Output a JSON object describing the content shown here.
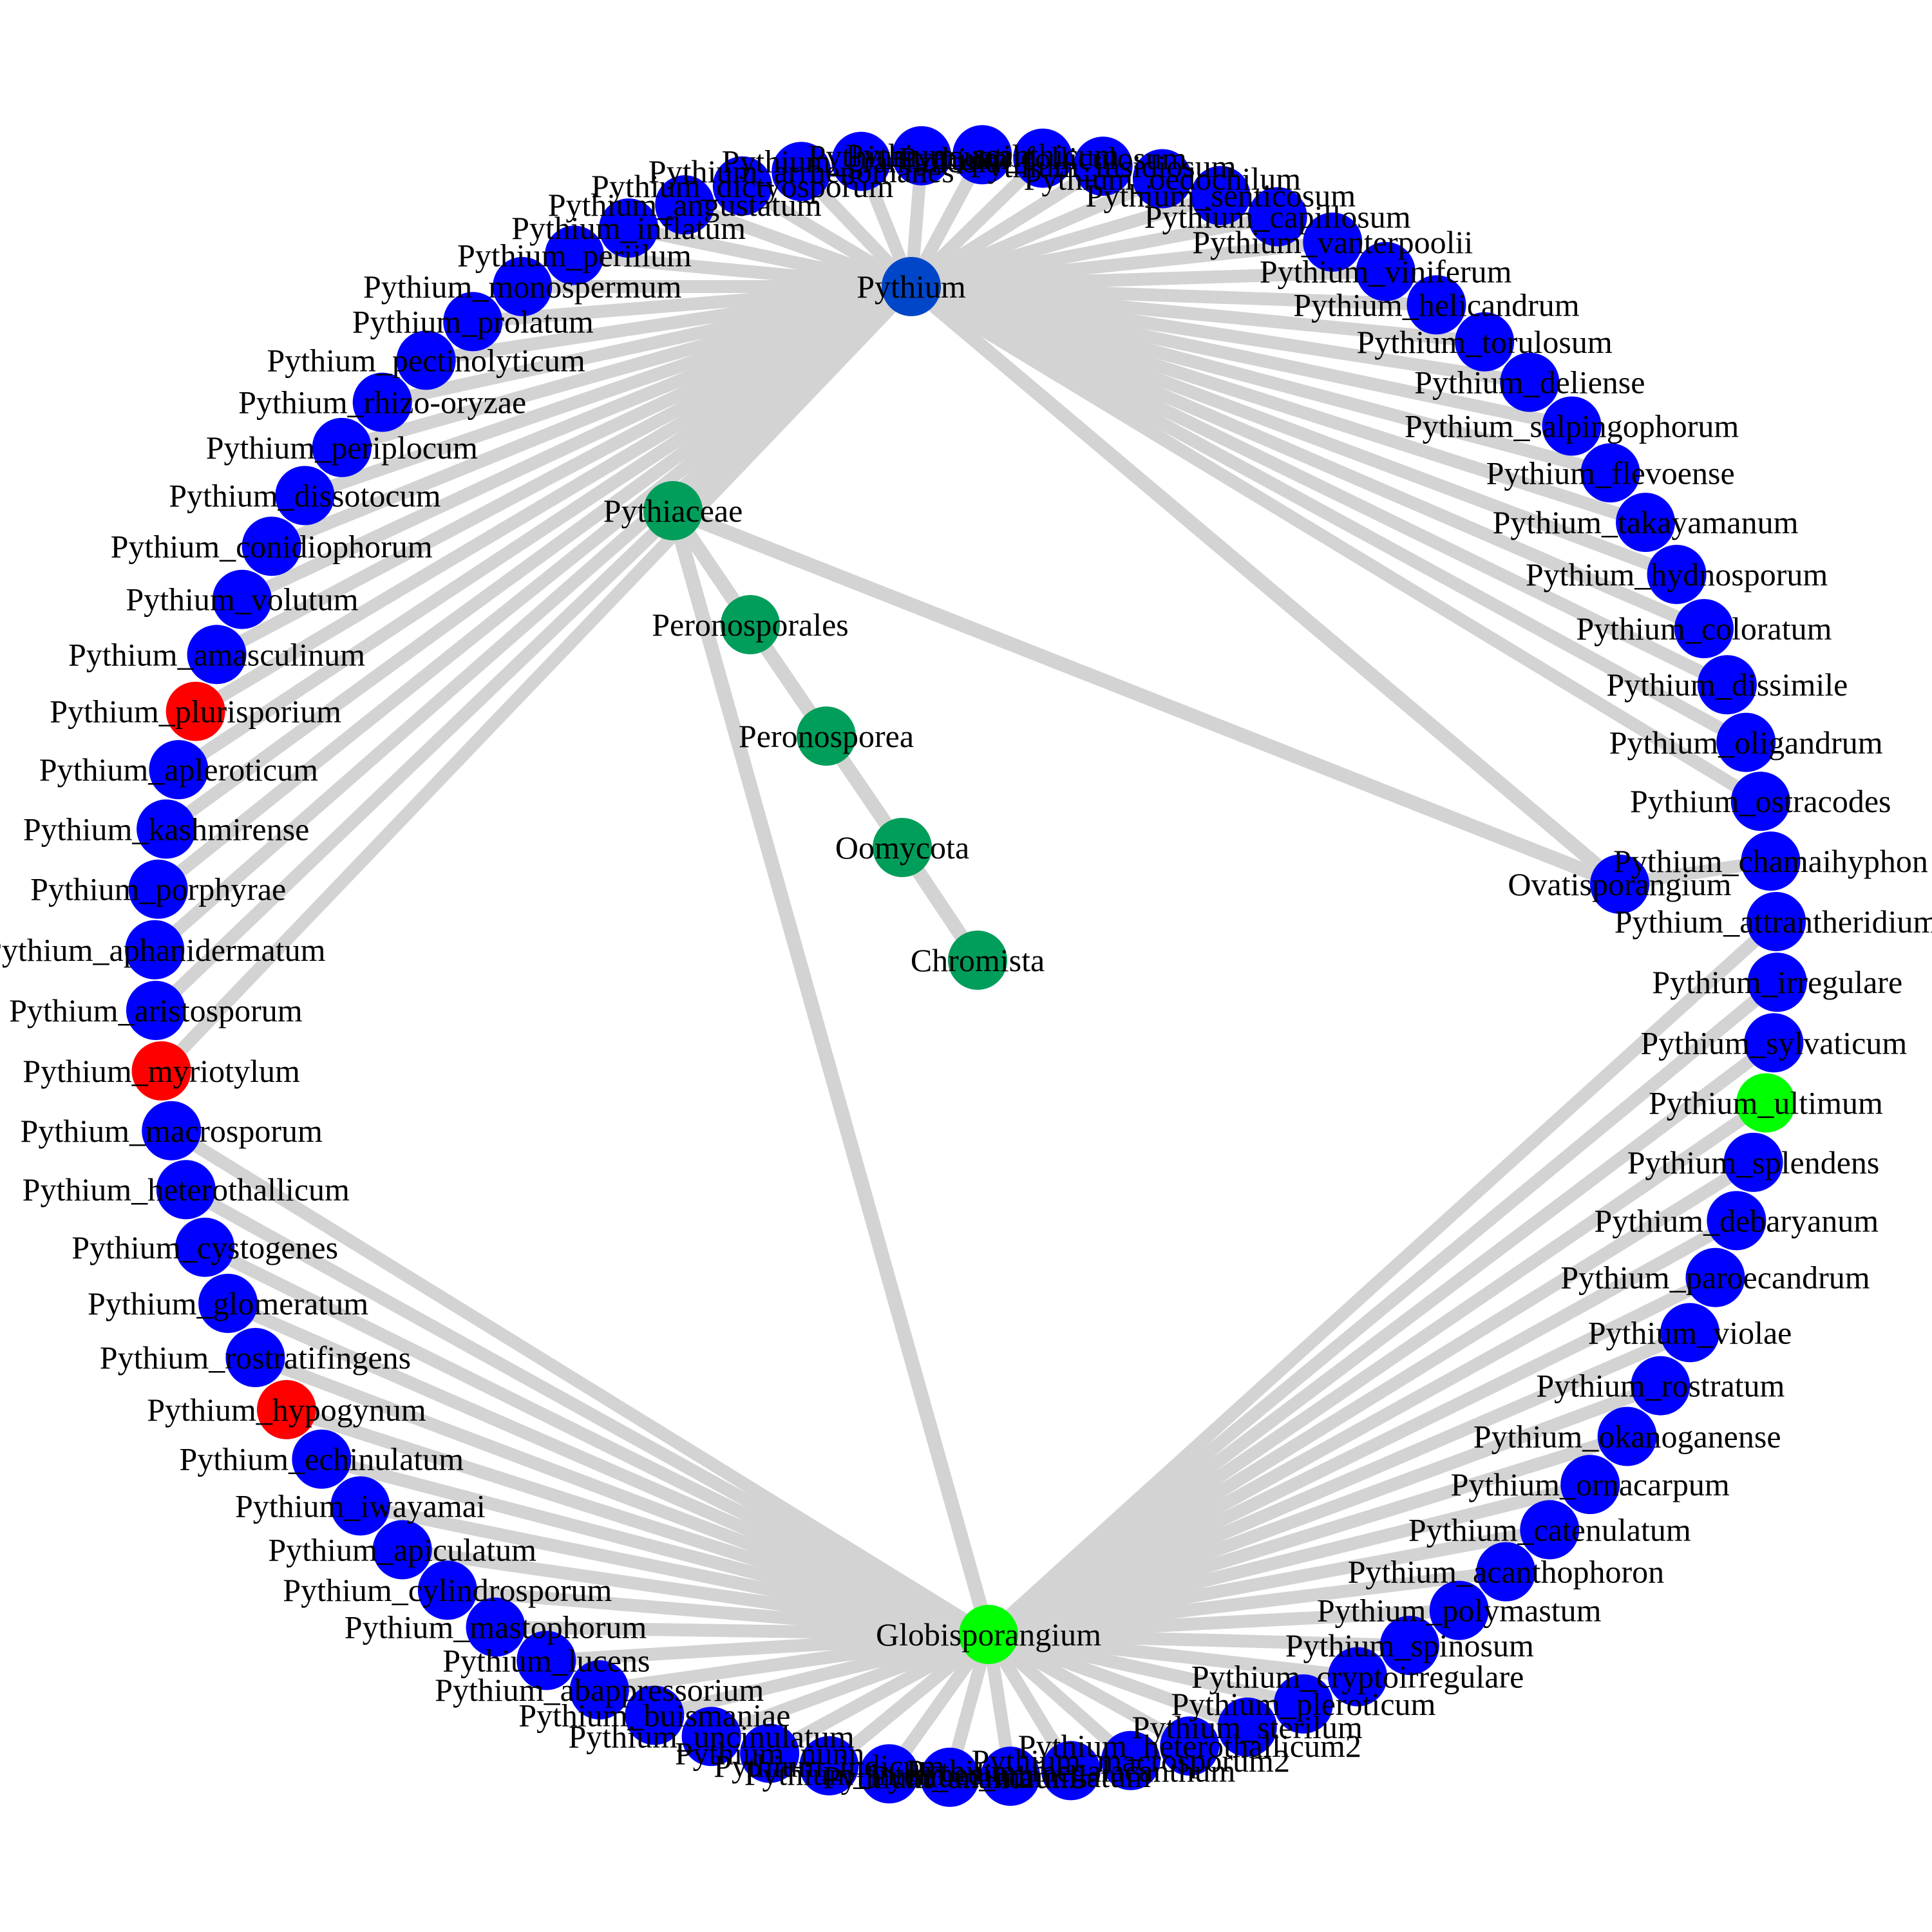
{
  "colors": {
    "edge": "#d3d3d3",
    "species": "#0000ff",
    "highlight_red": "#ff0000",
    "highlight_green": "#00ff00",
    "taxon": "#009e5a",
    "genus": "#0046c8"
  },
  "taxa": [
    {
      "id": "pythium",
      "label": "Pythium",
      "color": "#0046c8"
    },
    {
      "id": "pythiaceae",
      "label": "Pythiaceae",
      "color": "#009e5a"
    },
    {
      "id": "peronosporales",
      "label": "Peronosporales",
      "color": "#009e5a"
    },
    {
      "id": "peronosporea",
      "label": "Peronosporea",
      "color": "#009e5a"
    },
    {
      "id": "oomycota",
      "label": "Oomycota",
      "color": "#009e5a"
    },
    {
      "id": "chromista",
      "label": "Chromista",
      "color": "#009e5a"
    },
    {
      "id": "globisporangium",
      "label": "Globisporangium",
      "color": "#00ff00"
    },
    {
      "id": "ovatisporangium",
      "label": "Ovatisporangium",
      "color": "#0000ff"
    }
  ],
  "taxon_edges": [
    [
      "pythium",
      "pythiaceae"
    ],
    [
      "pythium",
      "ovatisporangium"
    ],
    [
      "pythiaceae",
      "ovatisporangium"
    ],
    [
      "pythiaceae",
      "peronosporales"
    ],
    [
      "pythiaceae",
      "globisporangium"
    ],
    [
      "peronosporales",
      "peronosporea"
    ],
    [
      "peronosporea",
      "oomycota"
    ],
    [
      "oomycota",
      "chromista"
    ]
  ],
  "species": [
    {
      "label": "Pythium_acanthicum",
      "color": "#0000ff",
      "parent": "pythium"
    },
    {
      "label": "Pythium_aquatile",
      "color": "#0000ff",
      "parent": "pythium"
    },
    {
      "label": "Pythium_graminicola",
      "color": "#0000ff",
      "parent": "pythium"
    },
    {
      "label": "Pythium_arrhenomanes",
      "color": "#0000ff",
      "parent": "pythium"
    },
    {
      "label": "Pythium_dictyosporum",
      "color": "#0000ff",
      "parent": "pythium"
    },
    {
      "label": "Pythium_angustatum",
      "color": "#0000ff",
      "parent": "pythium"
    },
    {
      "label": "Pythium_inflatum",
      "color": "#0000ff",
      "parent": "pythium"
    },
    {
      "label": "Pythium_periilum",
      "color": "#0000ff",
      "parent": "pythium"
    },
    {
      "label": "Pythium_monospermum",
      "color": "#0000ff",
      "parent": "pythium"
    },
    {
      "label": "Pythium_prolatum",
      "color": "#0000ff",
      "parent": "pythium"
    },
    {
      "label": "Pythium_pectinolyticum",
      "color": "#0000ff",
      "parent": "pythium"
    },
    {
      "label": "Pythium_rhizo-oryzae",
      "color": "#0000ff",
      "parent": "pythium"
    },
    {
      "label": "Pythium_periplocum",
      "color": "#0000ff",
      "parent": "pythium"
    },
    {
      "label": "Pythium_dissotocum",
      "color": "#0000ff",
      "parent": "pythium"
    },
    {
      "label": "Pythium_conidiophorum",
      "color": "#0000ff",
      "parent": "pythium"
    },
    {
      "label": "Pythium_volutum",
      "color": "#0000ff",
      "parent": "pythium"
    },
    {
      "label": "Pythium_amasculinum",
      "color": "#0000ff",
      "parent": "pythium"
    },
    {
      "label": "Pythium_plurisporium",
      "color": "#ff0000",
      "parent": "pythium"
    },
    {
      "label": "Pythium_apleroticum",
      "color": "#0000ff",
      "parent": "pythium"
    },
    {
      "label": "Pythium_kashmirense",
      "color": "#0000ff",
      "parent": "pythium"
    },
    {
      "label": "Pythium_porphyrae",
      "color": "#0000ff",
      "parent": "pythium"
    },
    {
      "label": "Pythium_aphanidermatum",
      "color": "#0000ff",
      "parent": "pythium"
    },
    {
      "label": "Pythium_aristosporum",
      "color": "#0000ff",
      "parent": "pythium"
    },
    {
      "label": "Pythium_myriotylum",
      "color": "#ff0000",
      "parent": "pythium"
    },
    {
      "label": "Pythium_macrosporum",
      "color": "#0000ff",
      "parent": "globisporangium"
    },
    {
      "label": "Pythium_heterothallicum",
      "color": "#0000ff",
      "parent": "globisporangium"
    },
    {
      "label": "Pythium_cystogenes",
      "color": "#0000ff",
      "parent": "globisporangium"
    },
    {
      "label": "Pythium_glomeratum",
      "color": "#0000ff",
      "parent": "globisporangium"
    },
    {
      "label": "Pythium_rostratifingens",
      "color": "#0000ff",
      "parent": "globisporangium"
    },
    {
      "label": "Pythium_hypogynum",
      "color": "#ff0000",
      "parent": "globisporangium"
    },
    {
      "label": "Pythium_echinulatum",
      "color": "#0000ff",
      "parent": "globisporangium"
    },
    {
      "label": "Pythium_iwayamai",
      "color": "#0000ff",
      "parent": "globisporangium"
    },
    {
      "label": "Pythium_apiculatum",
      "color": "#0000ff",
      "parent": "globisporangium"
    },
    {
      "label": "Pythium_cylindrosporum",
      "color": "#0000ff",
      "parent": "globisporangium"
    },
    {
      "label": "Pythium_mastophorum",
      "color": "#0000ff",
      "parent": "globisporangium"
    },
    {
      "label": "Pythium_lucens",
      "color": "#0000ff",
      "parent": "globisporangium"
    },
    {
      "label": "Pythium_abappressorium",
      "color": "#0000ff",
      "parent": "globisporangium"
    },
    {
      "label": "Pythium_buismaniae",
      "color": "#0000ff",
      "parent": "globisporangium"
    },
    {
      "label": "Pythium_uncinulatum",
      "color": "#0000ff",
      "parent": "globisporangium"
    },
    {
      "label": "Pythium_nunn",
      "color": "#0000ff",
      "parent": "globisporangium"
    },
    {
      "label": "Pythium_indicum",
      "color": "#0000ff",
      "parent": "globisporangium"
    },
    {
      "label": "Pythium_intermedium",
      "color": "#0000ff",
      "parent": "globisporangium"
    },
    {
      "label": "Pythium_anandrum",
      "color": "#0000ff",
      "parent": "globisporangium"
    },
    {
      "label": "Pythium_mamillatum",
      "color": "#0000ff",
      "parent": "globisporangium"
    },
    {
      "label": "Pythium_megalacanthum",
      "color": "#0000ff",
      "parent": "globisporangium"
    },
    {
      "label": "Pythium_macrosporum2",
      "color": "#0000ff",
      "parent": "globisporangium"
    },
    {
      "label": "Pythium_heterothallicum2",
      "color": "#0000ff",
      "parent": "globisporangium"
    },
    {
      "label": "Pythium_sterilum",
      "color": "#0000ff",
      "parent": "globisporangium"
    },
    {
      "label": "Pythium_pleroticum",
      "color": "#0000ff",
      "parent": "globisporangium"
    },
    {
      "label": "Pythium_cryptoirregulare",
      "color": "#0000ff",
      "parent": "globisporangium"
    },
    {
      "label": "Pythium_spinosum",
      "color": "#0000ff",
      "parent": "globisporangium"
    },
    {
      "label": "Pythium_polymastum",
      "color": "#0000ff",
      "parent": "globisporangium"
    },
    {
      "label": "Pythium_acanthophoron",
      "color": "#0000ff",
      "parent": "globisporangium"
    },
    {
      "label": "Pythium_catenulatum",
      "color": "#0000ff",
      "parent": "globisporangium"
    },
    {
      "label": "Pythium_ornacarpum",
      "color": "#0000ff",
      "parent": "globisporangium"
    },
    {
      "label": "Pythium_okanoganense",
      "color": "#0000ff",
      "parent": "globisporangium"
    },
    {
      "label": "Pythium_rostratum",
      "color": "#0000ff",
      "parent": "globisporangium"
    },
    {
      "label": "Pythium_violae",
      "color": "#0000ff",
      "parent": "globisporangium"
    },
    {
      "label": "Pythium_paroecandrum",
      "color": "#0000ff",
      "parent": "globisporangium"
    },
    {
      "label": "Pythium_debaryanum",
      "color": "#0000ff",
      "parent": "globisporangium"
    },
    {
      "label": "Pythium_splendens",
      "color": "#0000ff",
      "parent": "globisporangium"
    },
    {
      "label": "Pythium_ultimum",
      "color": "#00ff00",
      "parent": "globisporangium"
    },
    {
      "label": "Pythium_sylvaticum",
      "color": "#0000ff",
      "parent": "globisporangium"
    },
    {
      "label": "Pythium_irregulare",
      "color": "#0000ff",
      "parent": "globisporangium"
    },
    {
      "label": "Pythium_attrantheridium",
      "color": "#0000ff",
      "parent": "globisporangium"
    },
    {
      "label": "Pythium_chamaihyphon",
      "color": "#0000ff",
      "parent": "ovatisporangium"
    },
    {
      "label": "Pythium_ostracodes",
      "color": "#0000ff",
      "parent": "pythium"
    },
    {
      "label": "Pythium_oligandrum",
      "color": "#0000ff",
      "parent": "pythium"
    },
    {
      "label": "Pythium_dissimile",
      "color": "#0000ff",
      "parent": "pythium"
    },
    {
      "label": "Pythium_coloratum",
      "color": "#0000ff",
      "parent": "pythium"
    },
    {
      "label": "Pythium_hydnosporum",
      "color": "#0000ff",
      "parent": "pythium"
    },
    {
      "label": "Pythium_takayamanum",
      "color": "#0000ff",
      "parent": "pythium"
    },
    {
      "label": "Pythium_flevoense",
      "color": "#0000ff",
      "parent": "pythium"
    },
    {
      "label": "Pythium_salpingophorum",
      "color": "#0000ff",
      "parent": "pythium"
    },
    {
      "label": "Pythium_deliense",
      "color": "#0000ff",
      "parent": "pythium"
    },
    {
      "label": "Pythium_torulosum",
      "color": "#0000ff",
      "parent": "pythium"
    },
    {
      "label": "Pythium_helicandrum",
      "color": "#0000ff",
      "parent": "pythium"
    },
    {
      "label": "Pythium_viniferum",
      "color": "#0000ff",
      "parent": "pythium"
    },
    {
      "label": "Pythium_vanterpoolii",
      "color": "#0000ff",
      "parent": "pythium"
    },
    {
      "label": "Pythium_capillosum",
      "color": "#0000ff",
      "parent": "pythium"
    },
    {
      "label": "Pythium_senticosum",
      "color": "#0000ff",
      "parent": "pythium"
    },
    {
      "label": "Pythium_oedochilum",
      "color": "#0000ff",
      "parent": "pythium"
    },
    {
      "label": "Pythium_insidiosum",
      "color": "#0000ff",
      "parent": "pythium"
    },
    {
      "label": "Pythium_folliculosum",
      "color": "#0000ff",
      "parent": "pythium"
    }
  ]
}
